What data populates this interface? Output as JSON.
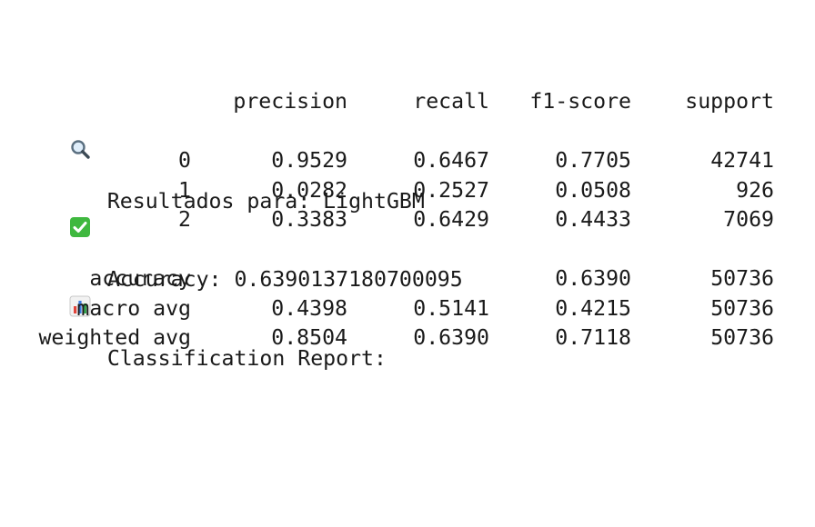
{
  "header": {
    "results_line": "Resultados para: LightGBM",
    "accuracy_line": "Accuracy: 0.6390137180700095",
    "report_title": "Classification Report:"
  },
  "icons": {
    "results": "magnifier-icon",
    "accuracy": "check-mark-icon",
    "report": "bar-chart-icon"
  },
  "report": {
    "columns": [
      "precision",
      "recall",
      "f1-score",
      "support"
    ],
    "class_rows": [
      {
        "label": "0",
        "precision": "0.9529",
        "recall": "0.6467",
        "f1": "0.7705",
        "support": "42741"
      },
      {
        "label": "1",
        "precision": "0.0282",
        "recall": "0.2527",
        "f1": "0.0508",
        "support": "926"
      },
      {
        "label": "2",
        "precision": "0.3383",
        "recall": "0.6429",
        "f1": "0.4433",
        "support": "7069"
      }
    ],
    "summary_rows": [
      {
        "label": "accuracy",
        "precision": "",
        "recall": "",
        "f1": "0.6390",
        "support": "50736"
      },
      {
        "label": "macro avg",
        "precision": "0.4398",
        "recall": "0.5141",
        "f1": "0.4215",
        "support": "50736"
      },
      {
        "label": "weighted avg",
        "precision": "0.8504",
        "recall": "0.6390",
        "f1": "0.7118",
        "support": "50736"
      }
    ]
  }
}
